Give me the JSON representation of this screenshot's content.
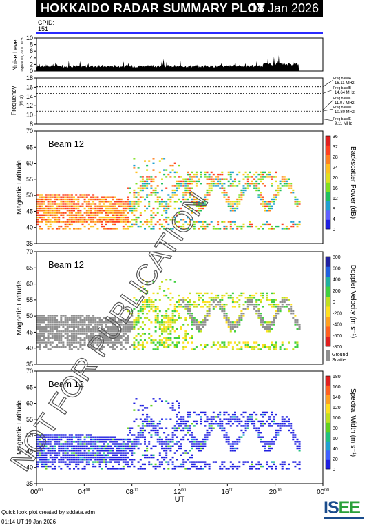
{
  "header": {
    "title": "HOKKAIDO RADAR SUMMARY PLOT",
    "date": "18 Jan 2026"
  },
  "cpid": {
    "label": "CPID:",
    "value": "151"
  },
  "noise": {
    "ylabel": "Noise Level",
    "ylabel_sub": "log(values) / a.u. 10^3",
    "ticks": [
      "0",
      "2",
      "4",
      "6",
      "8",
      "10"
    ]
  },
  "frequency": {
    "ylabel": "Frequency",
    "ylabel_sub": "(MHz)",
    "ticks": [
      "8",
      "10",
      "12",
      "14",
      "16",
      "18"
    ],
    "bands": [
      {
        "label": "Freq bandA",
        "value": "16.11 MHz",
        "mhz": 16.11
      },
      {
        "label": "Freq bandB",
        "value": "14.64 MHz",
        "mhz": 14.64
      },
      {
        "label": "Freq bandC",
        "value": "11.07 MHz",
        "mhz": 11.07
      },
      {
        "label": "Freq bandD",
        "value": "10.80 MHz",
        "mhz": 10.8
      },
      {
        "label": "Freq bandE",
        "value": "9.11 MHz",
        "mhz": 9.11
      }
    ]
  },
  "panels": [
    {
      "beam": "Beam 12",
      "ylabel": "Magnetic Latitude",
      "cbar_label": "Backscatter Power (dB)",
      "cbar_ticks": [
        "0",
        "4",
        "8",
        "12",
        "16",
        "20",
        "24",
        "28",
        "32",
        "36"
      ],
      "colors": [
        "#2020e0",
        "#6060ff",
        "#20a0d0",
        "#20c060",
        "#80e020",
        "#e0e020",
        "#ffc020",
        "#ff8020",
        "#ff4020",
        "#e02020"
      ]
    },
    {
      "beam": "Beam 12",
      "ylabel": "Magnetic Latitude",
      "cbar_label": "Doppler Velocity (m s⁻¹)",
      "cbar_ticks": [
        "-800",
        "-600",
        "-400",
        "-200",
        "0",
        "200",
        "400",
        "600",
        "800"
      ],
      "colors": [
        "#e02020",
        "#ff6020",
        "#ffa020",
        "#ffe020",
        "#c0e020",
        "#40d040",
        "#20b0a0",
        "#2060e0",
        "#2020a0"
      ],
      "ground_label": "Ground",
      "ground_label2": "Scatter",
      "ground_color": "#909090"
    },
    {
      "beam": "Beam 12",
      "ylabel": "Magnetic Latitude",
      "cbar_label": "Spectral Width (m s⁻¹)",
      "cbar_ticks": [
        "0",
        "20",
        "40",
        "60",
        "80",
        "100",
        "120",
        "140",
        "160",
        "180"
      ],
      "colors": [
        "#2020e0",
        "#4060ff",
        "#20a0d0",
        "#20c080",
        "#60d020",
        "#c0e020",
        "#ffe020",
        "#ffa020",
        "#ff6020",
        "#e02020"
      ]
    }
  ],
  "lat_ticks": [
    "35",
    "40",
    "45",
    "50",
    "55",
    "60",
    "65",
    "70"
  ],
  "x_axis": {
    "label": "UT",
    "ticks": [
      {
        "h": "00",
        "m": "00"
      },
      {
        "h": "04",
        "m": "00"
      },
      {
        "h": "08",
        "m": "00"
      },
      {
        "h": "12",
        "m": "00"
      },
      {
        "h": "16",
        "m": "00"
      },
      {
        "h": "20",
        "m": "00"
      },
      {
        "h": "00",
        "m": "00"
      }
    ]
  },
  "watermark": "NOT FOR PUBLICATION",
  "footer": {
    "line1": "Quick look plot created by sddata.adm",
    "line2": "01:14 UT 19 Jan 2026"
  },
  "logo": {
    "left": "IS",
    "right": "EE"
  }
}
